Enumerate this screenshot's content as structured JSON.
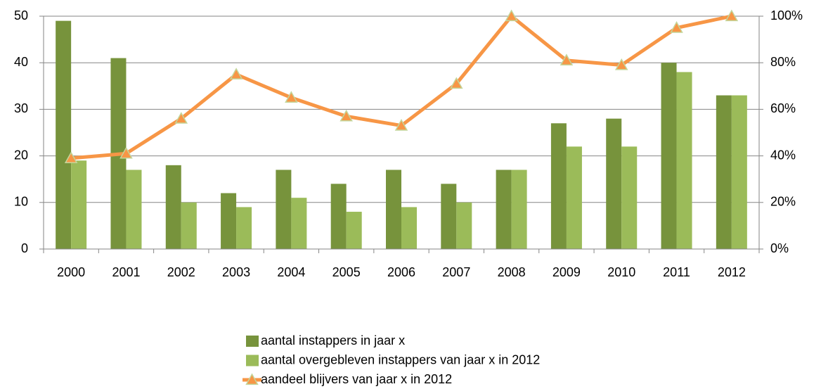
{
  "chart_data": {
    "type": "bar-line",
    "categories": [
      "2000",
      "2001",
      "2002",
      "2003",
      "2004",
      "2005",
      "2006",
      "2007",
      "2008",
      "2009",
      "2010",
      "2011",
      "2012"
    ],
    "series": [
      {
        "name": "aantal instappers in jaar x",
        "type": "bar",
        "color": "#77933c",
        "values": [
          49,
          41,
          18,
          12,
          17,
          14,
          17,
          14,
          17,
          27,
          28,
          40,
          33
        ]
      },
      {
        "name": "aantal overgebleven instappers van jaar x in 2012",
        "type": "bar",
        "color": "#9bbb59",
        "values": [
          19,
          17,
          10,
          9,
          11,
          8,
          9,
          10,
          17,
          22,
          22,
          38,
          33
        ]
      },
      {
        "name": "aandeel blijvers van jaar x in 2012",
        "type": "line",
        "axis": "y2",
        "color": "#f79646",
        "values": [
          39,
          41,
          56,
          75,
          65,
          57,
          53,
          71,
          100,
          81,
          79,
          95,
          100
        ]
      }
    ],
    "ylim": [
      0,
      50
    ],
    "yticks": [
      0,
      10,
      20,
      30,
      40,
      50
    ],
    "y2lim": [
      0,
      100
    ],
    "y2ticks": [
      {
        "value": 0,
        "label": "0%"
      },
      {
        "value": 20,
        "label": "20%"
      },
      {
        "value": 40,
        "label": "40%"
      },
      {
        "value": 60,
        "label": "60%"
      },
      {
        "value": 80,
        "label": "80%"
      },
      {
        "value": 100,
        "label": "100%"
      }
    ],
    "grid": true,
    "legend": "bottom"
  }
}
